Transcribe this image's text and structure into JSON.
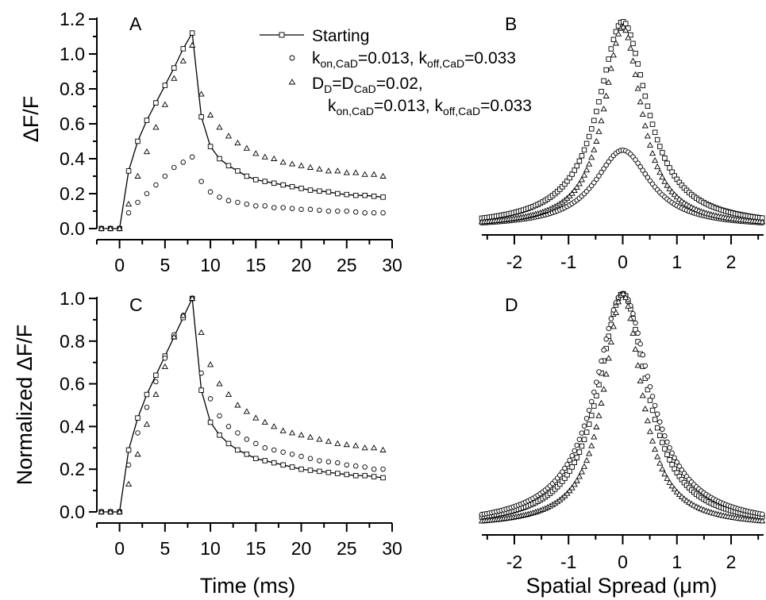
{
  "chart_data": [
    {
      "panel": "A",
      "type": "line",
      "xlabel": "",
      "ylabel": "ΔF/F",
      "xlim": [
        -2.5,
        30
      ],
      "ylim": [
        0,
        1.2
      ],
      "xticks": [
        "0",
        "5",
        "10",
        "15",
        "20",
        "25",
        "30"
      ],
      "yticks": [
        "0.0",
        "0.2",
        "0.4",
        "0.6",
        "0.8",
        "1.0",
        "1.2"
      ],
      "series": [
        {
          "name": "Starting",
          "marker": "square",
          "line": true,
          "x": [
            -2,
            -1,
            0,
            1,
            2,
            3,
            4,
            5,
            6,
            7,
            8,
            9,
            10,
            11,
            12,
            13,
            14,
            15,
            16,
            17,
            18,
            19,
            20,
            21,
            22,
            23,
            24,
            25,
            26,
            27,
            28,
            29
          ],
          "y": [
            0,
            0,
            0,
            0.33,
            0.5,
            0.62,
            0.72,
            0.82,
            0.92,
            1.03,
            1.12,
            0.64,
            0.47,
            0.4,
            0.36,
            0.33,
            0.3,
            0.28,
            0.27,
            0.26,
            0.25,
            0.24,
            0.23,
            0.22,
            0.215,
            0.21,
            0.2,
            0.195,
            0.19,
            0.19,
            0.185,
            0.18
          ]
        },
        {
          "name": "k_on,CaD=0.013, k_off,CaD=0.033",
          "marker": "circle",
          "line": false,
          "x": [
            -2,
            -1,
            0,
            1,
            2,
            3,
            4,
            5,
            6,
            7,
            8,
            9,
            10,
            11,
            12,
            13,
            14,
            15,
            16,
            17,
            18,
            19,
            20,
            21,
            22,
            23,
            24,
            25,
            26,
            27,
            28,
            29
          ],
          "y": [
            0,
            0,
            0,
            0.09,
            0.15,
            0.2,
            0.25,
            0.3,
            0.35,
            0.38,
            0.41,
            0.27,
            0.21,
            0.18,
            0.16,
            0.15,
            0.14,
            0.13,
            0.13,
            0.12,
            0.12,
            0.115,
            0.11,
            0.11,
            0.105,
            0.1,
            0.1,
            0.1,
            0.095,
            0.09,
            0.09,
            0.09
          ]
        },
        {
          "name": "D_D=D_CaD=0.02, k_on,CaD=0.013, k_off,CaD=0.033",
          "marker": "triangle",
          "line": false,
          "x": [
            -2,
            -1,
            0,
            1,
            2,
            3,
            4,
            5,
            6,
            7,
            8,
            9,
            10,
            11,
            12,
            13,
            14,
            15,
            16,
            17,
            18,
            19,
            20,
            21,
            22,
            23,
            24,
            25,
            26,
            27,
            28,
            29
          ],
          "y": [
            0,
            0,
            0,
            0.14,
            0.3,
            0.44,
            0.58,
            0.71,
            0.86,
            0.96,
            1.05,
            0.77,
            0.65,
            0.58,
            0.53,
            0.49,
            0.46,
            0.43,
            0.41,
            0.4,
            0.38,
            0.37,
            0.36,
            0.35,
            0.34,
            0.33,
            0.33,
            0.32,
            0.32,
            0.31,
            0.31,
            0.3
          ]
        }
      ]
    },
    {
      "panel": "B",
      "type": "scatter",
      "xlabel": "",
      "ylabel": "",
      "xlim": [
        -2.6,
        2.6
      ],
      "ylim": [
        0,
        1.2
      ],
      "xticks": [
        "-2",
        "-1",
        "0",
        "1",
        "2"
      ],
      "series": [
        {
          "name": "Starting",
          "marker": "square",
          "peak": 1.15,
          "center": 0,
          "hwhm": 0.55
        },
        {
          "name": "k_on,CaD=0.013, k_off,CaD=0.033",
          "marker": "circle",
          "peak": 0.43,
          "center": 0,
          "hwhm": 0.62
        },
        {
          "name": "D_D=D_CaD=0.02, k_on,CaD=0.013, k_off,CaD=0.033",
          "marker": "triangle",
          "peak": 1.12,
          "center": 0,
          "hwhm": 0.42
        }
      ]
    },
    {
      "panel": "C",
      "type": "line",
      "xlabel": "Time (ms)",
      "ylabel": "Normalized ΔF/F",
      "xlim": [
        -2.5,
        30
      ],
      "ylim": [
        0,
        1.0
      ],
      "xticks": [
        "0",
        "5",
        "10",
        "15",
        "20",
        "25",
        "30"
      ],
      "yticks": [
        "0.0",
        "0.2",
        "0.4",
        "0.6",
        "0.8",
        "1.0"
      ],
      "series": [
        {
          "name": "Starting",
          "marker": "square",
          "line": true,
          "x": [
            -2,
            -1,
            0,
            1,
            2,
            3,
            4,
            5,
            6,
            7,
            8,
            9,
            10,
            11,
            12,
            13,
            14,
            15,
            16,
            17,
            18,
            19,
            20,
            21,
            22,
            23,
            24,
            25,
            26,
            27,
            28,
            29
          ],
          "y": [
            0,
            0,
            0,
            0.29,
            0.44,
            0.55,
            0.64,
            0.73,
            0.82,
            0.91,
            1.0,
            0.57,
            0.42,
            0.36,
            0.32,
            0.29,
            0.27,
            0.25,
            0.24,
            0.23,
            0.22,
            0.21,
            0.2,
            0.195,
            0.19,
            0.185,
            0.18,
            0.175,
            0.17,
            0.17,
            0.165,
            0.16
          ]
        },
        {
          "name": "k_on,CaD=0.013, k_off,CaD=0.033",
          "marker": "circle",
          "line": false,
          "x": [
            -2,
            -1,
            0,
            1,
            2,
            3,
            4,
            5,
            6,
            7,
            8,
            9,
            10,
            11,
            12,
            13,
            14,
            15,
            16,
            17,
            18,
            19,
            20,
            21,
            22,
            23,
            24,
            25,
            26,
            27,
            28,
            29
          ],
          "y": [
            0,
            0,
            0,
            0.22,
            0.37,
            0.49,
            0.61,
            0.72,
            0.83,
            0.92,
            1.0,
            0.65,
            0.53,
            0.45,
            0.4,
            0.37,
            0.34,
            0.32,
            0.3,
            0.29,
            0.28,
            0.27,
            0.26,
            0.25,
            0.24,
            0.235,
            0.23,
            0.22,
            0.215,
            0.21,
            0.2,
            0.2
          ]
        },
        {
          "name": "D_D=D_CaD=0.02, k_on,CaD=0.013, k_off,CaD=0.033",
          "marker": "triangle",
          "line": false,
          "x": [
            -2,
            -1,
            0,
            1,
            2,
            3,
            4,
            5,
            6,
            7,
            8,
            9,
            10,
            11,
            12,
            13,
            14,
            15,
            16,
            17,
            18,
            19,
            20,
            21,
            22,
            23,
            24,
            25,
            26,
            27,
            28,
            29
          ],
          "y": [
            0,
            0,
            0,
            0.13,
            0.27,
            0.41,
            0.55,
            0.68,
            0.82,
            0.92,
            1.0,
            0.84,
            0.69,
            0.6,
            0.55,
            0.5,
            0.47,
            0.44,
            0.42,
            0.4,
            0.38,
            0.37,
            0.36,
            0.35,
            0.34,
            0.33,
            0.32,
            0.315,
            0.31,
            0.3,
            0.3,
            0.29
          ]
        }
      ]
    },
    {
      "panel": "D",
      "type": "scatter",
      "xlabel": "Spatial Spread (μm)",
      "ylabel": "",
      "xlim": [
        -2.6,
        2.6
      ],
      "ylim": [
        0,
        1.0
      ],
      "xticks": [
        "-2",
        "-1",
        "0",
        "1",
        "2"
      ],
      "series": [
        {
          "name": "Starting",
          "marker": "square",
          "peak": 1.0,
          "center": 0,
          "hwhm": 0.55
        },
        {
          "name": "k_on,CaD=0.013, k_off,CaD=0.033",
          "marker": "circle",
          "peak": 1.0,
          "center": 0,
          "hwhm": 0.62
        },
        {
          "name": "D_D=D_CaD=0.02, k_on,CaD=0.013, k_off,CaD=0.033",
          "marker": "triangle",
          "peak": 1.0,
          "center": 0,
          "hwhm": 0.42
        }
      ]
    }
  ],
  "panels": {
    "a": "A",
    "b": "B",
    "c": "C",
    "d": "D"
  },
  "axis_titles": {
    "a_y": "ΔF/F",
    "c_y": "Normalized ΔF/F",
    "c_x": "Time (ms)",
    "d_x": "Spatial Spread (μm)"
  },
  "legend": {
    "starting": "Starting",
    "circle_k": "k",
    "circle_sub1": "on,CaD",
    "circle_mid": "=0.013, k",
    "circle_sub2": "off,CaD",
    "circle_end": "=0.033",
    "tri1_d": "D",
    "tri1_sub1": "D",
    "tri1_mid": "=D",
    "tri1_sub2": "CaD",
    "tri1_end": "=0.02,",
    "tri2_k": "k",
    "tri2_sub1": "on,CaD",
    "tri2_mid": "=0.013, k",
    "tri2_sub2": "off,CaD",
    "tri2_end": "=0.033"
  }
}
